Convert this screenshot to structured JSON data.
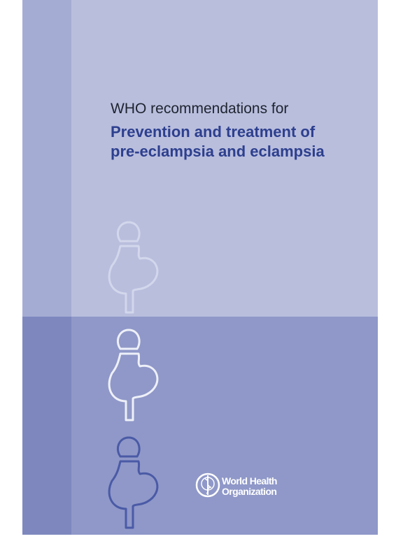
{
  "cover": {
    "series_line": "WHO recommendations for",
    "title": [
      "Prevention and treatment of",
      "pre-eclampsia and eclampsia"
    ],
    "publisher": [
      "World Health",
      "Organization"
    ]
  }
}
